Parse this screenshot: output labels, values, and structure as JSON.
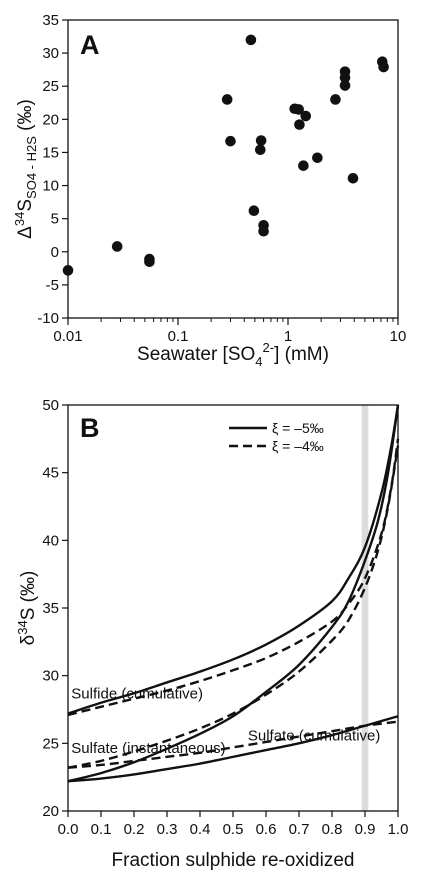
{
  "chart_data": [
    {
      "type": "scatter",
      "panel": "A",
      "xlabel": "Seawater [SO4 2-] (mM)",
      "xlabel_parts": {
        "pre": "Seawater [SO",
        "sub": "4",
        "sup": "2-",
        "post": "] (mM)"
      },
      "ylabel": "Δ34S SO4 - H2S (‰)",
      "ylabel_parts": {
        "pre": "Δ",
        "sup": "34",
        "main": "S",
        "sub": "SO4 - H2S",
        "post": " (‰)"
      },
      "x_scale": "log",
      "xlim": [
        0.01,
        10
      ],
      "ylim": [
        -10,
        35
      ],
      "x_ticks": [
        0.01,
        0.1,
        1,
        10
      ],
      "x_tick_labels": [
        "0.01",
        "0.1",
        "1",
        "10"
      ],
      "y_ticks": [
        -10,
        -5,
        0,
        5,
        10,
        15,
        20,
        25,
        30,
        35
      ],
      "y_tick_labels": [
        "-10",
        "-5",
        "0",
        "5",
        "10",
        "15",
        "20",
        "25",
        "30",
        "35"
      ],
      "grid": false,
      "points": [
        [
          0.01,
          -2.8
        ],
        [
          0.028,
          0.8
        ],
        [
          0.055,
          -1.1
        ],
        [
          0.055,
          -1.5
        ],
        [
          0.28,
          23.0
        ],
        [
          0.3,
          16.7
        ],
        [
          0.46,
          32.0
        ],
        [
          0.49,
          6.2
        ],
        [
          0.56,
          15.4
        ],
        [
          0.57,
          16.8
        ],
        [
          0.6,
          4.0
        ],
        [
          0.6,
          3.1
        ],
        [
          1.15,
          21.6
        ],
        [
          1.25,
          21.5
        ],
        [
          1.27,
          19.2
        ],
        [
          1.38,
          13.0
        ],
        [
          1.45,
          20.5
        ],
        [
          1.85,
          14.2
        ],
        [
          2.7,
          23.0
        ],
        [
          3.3,
          27.2
        ],
        [
          3.3,
          26.3
        ],
        [
          3.3,
          25.1
        ],
        [
          3.9,
          11.1
        ],
        [
          7.2,
          28.7
        ],
        [
          7.4,
          27.9
        ]
      ]
    },
    {
      "type": "line",
      "panel": "B",
      "xlabel": "Fraction sulphide re-oxidized",
      "ylabel": "δ34S (‰)",
      "ylabel_parts": {
        "pre": "δ",
        "sup": "34",
        "main": "S",
        "post": " (‰)"
      },
      "xlim": [
        0,
        1
      ],
      "ylim": [
        20,
        50
      ],
      "x_ticks": [
        0,
        0.1,
        0.2,
        0.3,
        0.4,
        0.5,
        0.6,
        0.7,
        0.8,
        0.9,
        1.0
      ],
      "x_tick_labels": [
        "0.0",
        "0.1",
        "0.2",
        "0.3",
        "0.4",
        "0.5",
        "0.6",
        "0.7",
        "0.8",
        "0.9",
        "1.0"
      ],
      "y_ticks": [
        20,
        25,
        30,
        35,
        40,
        45,
        50
      ],
      "y_tick_labels": [
        "20",
        "25",
        "30",
        "35",
        "40",
        "45",
        "50"
      ],
      "grid": false,
      "highlight_band": [
        0.89,
        0.91
      ],
      "legend": {
        "placement": "top-right",
        "entries": [
          {
            "label": "ξ = –5‰",
            "style": "solid"
          },
          {
            "label": "ξ = –4‰",
            "style": "dashed"
          }
        ]
      },
      "series": [
        {
          "curve": "sulfide_cumulative",
          "style": "solid",
          "x": [
            0,
            0.1,
            0.2,
            0.3,
            0.4,
            0.5,
            0.6,
            0.7,
            0.8,
            0.85,
            0.9,
            0.95,
            0.98,
            1.0
          ],
          "y": [
            27.2,
            28.0,
            28.7,
            29.5,
            30.3,
            31.2,
            32.3,
            33.7,
            35.5,
            37.2,
            39.5,
            43.5,
            47.0,
            50.0
          ]
        },
        {
          "curve": "sulfide_cumulative",
          "style": "dashed",
          "x": [
            0,
            0.1,
            0.2,
            0.3,
            0.4,
            0.5,
            0.6,
            0.7,
            0.8,
            0.85,
            0.9,
            0.95,
            0.98,
            1.0
          ],
          "y": [
            27.1,
            27.7,
            28.3,
            28.9,
            29.6,
            30.4,
            31.3,
            32.5,
            34.0,
            35.3,
            37.2,
            40.5,
            44.0,
            47.5
          ]
        },
        {
          "curve": "sulfate_instantaneous",
          "style": "solid",
          "x": [
            0,
            0.1,
            0.2,
            0.3,
            0.4,
            0.5,
            0.6,
            0.7,
            0.8,
            0.85,
            0.9,
            0.94,
            0.97,
            1.0
          ],
          "y": [
            22.2,
            22.8,
            23.6,
            24.6,
            25.7,
            27.0,
            28.8,
            30.8,
            33.6,
            35.5,
            38.5,
            41.5,
            45.0,
            50.0
          ]
        },
        {
          "curve": "sulfate_instantaneous",
          "style": "dashed",
          "x": [
            0,
            0.1,
            0.2,
            0.3,
            0.4,
            0.5,
            0.6,
            0.7,
            0.8,
            0.85,
            0.9,
            0.94,
            0.97,
            1.0
          ],
          "y": [
            23.2,
            23.7,
            24.4,
            25.2,
            26.1,
            27.2,
            28.6,
            30.3,
            32.6,
            34.1,
            36.5,
            39.3,
            42.5,
            47.0
          ]
        },
        {
          "curve": "sulfate_cumulative",
          "style": "solid",
          "x": [
            0,
            0.1,
            0.2,
            0.3,
            0.4,
            0.5,
            0.6,
            0.7,
            0.8,
            0.9,
            1.0
          ],
          "y": [
            22.2,
            22.4,
            22.7,
            23.1,
            23.5,
            24.0,
            24.5,
            25.0,
            25.6,
            26.3,
            27.0
          ]
        },
        {
          "curve": "sulfate_cumulative",
          "style": "dashed",
          "x": [
            0,
            0.1,
            0.2,
            0.3,
            0.4,
            0.5,
            0.6,
            0.7,
            0.8,
            0.9,
            1.0
          ],
          "y": [
            23.2,
            23.4,
            23.7,
            24.0,
            24.3,
            24.7,
            25.1,
            25.5,
            25.9,
            26.3,
            26.6
          ]
        }
      ],
      "annotations": [
        {
          "text": "Sulfide (cumulative)",
          "x": 0.01,
          "y": 28.3
        },
        {
          "text": "Sulfate (instantaneous)",
          "x": 0.01,
          "y": 24.3
        },
        {
          "text": "Sulfate (cumulative)",
          "x": 0.545,
          "y": 25.2
        }
      ]
    }
  ]
}
